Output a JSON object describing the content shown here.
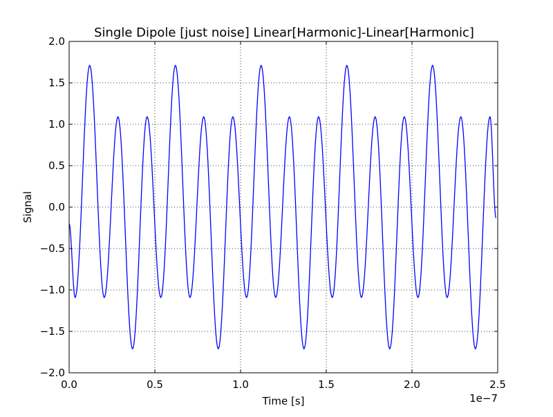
{
  "chart_data": {
    "type": "line",
    "title": "Single Dipole [just noise] Linear[Harmonic]-Linear[Harmonic]",
    "xlabel": "Time [s]",
    "ylabel": "Signal",
    "x_offset_label": "1e−7",
    "xlim": [
      0.0,
      2.5
    ],
    "ylim": [
      -2.0,
      2.0
    ],
    "x_scale_factor": 1e-07,
    "x_ticks": [
      0.0,
      0.5,
      1.0,
      1.5,
      2.0,
      2.5
    ],
    "x_tick_labels": [
      "0.0",
      "0.5",
      "1.0",
      "1.5",
      "2.0",
      "2.5"
    ],
    "y_ticks": [
      -2.0,
      -1.5,
      -1.0,
      -0.5,
      0.0,
      0.5,
      1.0,
      1.5,
      2.0
    ],
    "y_tick_labels": [
      "−2.0",
      "−1.5",
      "−1.0",
      "−0.5",
      "0.0",
      "0.5",
      "1.0",
      "1.5",
      "2.0"
    ],
    "grid": true,
    "line_color": "#0000ff",
    "series": [
      {
        "values_x": [
          0.0,
          0.035,
          0.12,
          0.205,
          0.285,
          0.37,
          0.455,
          0.535,
          0.62,
          0.705,
          0.785,
          0.87,
          0.955,
          1.035,
          1.12,
          1.205,
          1.285,
          1.37,
          1.455,
          1.535,
          1.62,
          1.705,
          1.785,
          1.87,
          1.955,
          2.035,
          2.12,
          2.205,
          2.285,
          2.37,
          2.455,
          2.49
        ],
        "values_y": [
          -0.2,
          -1.09,
          1.71,
          -1.09,
          1.09,
          -1.71,
          1.09,
          -1.09,
          1.71,
          -1.09,
          1.09,
          -1.71,
          1.09,
          -1.09,
          1.71,
          -1.09,
          1.09,
          -1.71,
          1.09,
          -1.09,
          1.71,
          -1.09,
          1.09,
          -1.71,
          1.09,
          -1.09,
          1.71,
          -1.09,
          1.09,
          -1.71,
          1.09,
          -0.13
        ]
      }
    ]
  }
}
